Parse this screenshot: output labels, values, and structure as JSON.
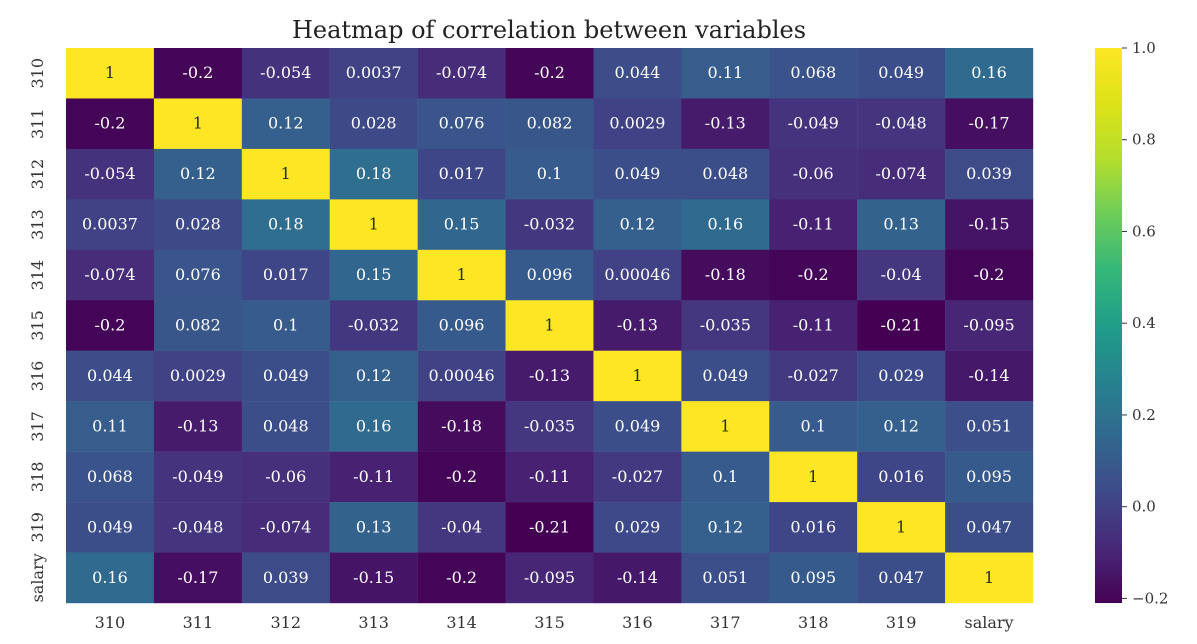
{
  "chart_data": {
    "type": "heatmap",
    "title": "Heatmap of correlation between variables",
    "rows": [
      "310",
      "311",
      "312",
      "313",
      "314",
      "315",
      "316",
      "317",
      "318",
      "319",
      "salary"
    ],
    "cols": [
      "310",
      "311",
      "312",
      "313",
      "314",
      "315",
      "316",
      "317",
      "318",
      "319",
      "salary"
    ],
    "values": [
      [
        1,
        -0.2,
        -0.054,
        0.0037,
        -0.074,
        -0.2,
        0.044,
        0.11,
        0.068,
        0.049,
        0.16
      ],
      [
        -0.2,
        1,
        0.12,
        0.028,
        0.076,
        0.082,
        0.0029,
        -0.13,
        -0.049,
        -0.048,
        -0.17
      ],
      [
        -0.054,
        0.12,
        1,
        0.18,
        0.017,
        0.1,
        0.049,
        0.048,
        -0.06,
        -0.074,
        0.039
      ],
      [
        0.0037,
        0.028,
        0.18,
        1,
        0.15,
        -0.032,
        0.12,
        0.16,
        -0.11,
        0.13,
        -0.15
      ],
      [
        -0.074,
        0.076,
        0.017,
        0.15,
        1,
        0.096,
        0.00046,
        -0.18,
        -0.2,
        -0.04,
        -0.2
      ],
      [
        -0.2,
        0.082,
        0.1,
        -0.032,
        0.096,
        1,
        -0.13,
        -0.035,
        -0.11,
        -0.21,
        -0.095
      ],
      [
        0.044,
        0.0029,
        0.049,
        0.12,
        0.00046,
        -0.13,
        1,
        0.049,
        -0.027,
        0.029,
        -0.14
      ],
      [
        0.11,
        -0.13,
        0.048,
        0.16,
        -0.18,
        -0.035,
        0.049,
        1,
        0.1,
        0.12,
        0.051
      ],
      [
        0.068,
        -0.049,
        -0.06,
        -0.11,
        -0.2,
        -0.11,
        -0.027,
        0.1,
        1,
        0.016,
        0.095
      ],
      [
        0.049,
        -0.048,
        -0.074,
        0.13,
        -0.04,
        -0.21,
        0.029,
        0.12,
        0.016,
        1,
        0.047
      ],
      [
        0.16,
        -0.17,
        0.039,
        -0.15,
        -0.2,
        -0.095,
        -0.14,
        0.051,
        0.095,
        0.047,
        1
      ]
    ],
    "value_labels": [
      [
        "1",
        "-0.2",
        "-0.054",
        "0.0037",
        "-0.074",
        "-0.2",
        "0.044",
        "0.11",
        "0.068",
        "0.049",
        "0.16"
      ],
      [
        "-0.2",
        "1",
        "0.12",
        "0.028",
        "0.076",
        "0.082",
        "0.0029",
        "-0.13",
        "-0.049",
        "-0.048",
        "-0.17"
      ],
      [
        "-0.054",
        "0.12",
        "1",
        "0.18",
        "0.017",
        "0.1",
        "0.049",
        "0.048",
        "-0.06",
        "-0.074",
        "0.039"
      ],
      [
        "0.0037",
        "0.028",
        "0.18",
        "1",
        "0.15",
        "-0.032",
        "0.12",
        "0.16",
        "-0.11",
        "0.13",
        "-0.15"
      ],
      [
        "-0.074",
        "0.076",
        "0.017",
        "0.15",
        "1",
        "0.096",
        "0.00046",
        "-0.18",
        "-0.2",
        "-0.04",
        "-0.2"
      ],
      [
        "-0.2",
        "0.082",
        "0.1",
        "-0.032",
        "0.096",
        "1",
        "-0.13",
        "-0.035",
        "-0.11",
        "-0.21",
        "-0.095"
      ],
      [
        "0.044",
        "0.0029",
        "0.049",
        "0.12",
        "0.00046",
        "-0.13",
        "1",
        "0.049",
        "-0.027",
        "0.029",
        "-0.14"
      ],
      [
        "0.11",
        "-0.13",
        "0.048",
        "0.16",
        "-0.18",
        "-0.035",
        "0.049",
        "1",
        "0.1",
        "0.12",
        "0.051"
      ],
      [
        "0.068",
        "-0.049",
        "-0.06",
        "-0.11",
        "-0.2",
        "-0.11",
        "-0.027",
        "0.1",
        "1",
        "0.016",
        "0.095"
      ],
      [
        "0.049",
        "-0.048",
        "-0.074",
        "0.13",
        "-0.04",
        "-0.21",
        "0.029",
        "0.12",
        "0.016",
        "1",
        "0.047"
      ],
      [
        "0.16",
        "-0.17",
        "0.039",
        "-0.15",
        "-0.2",
        "-0.095",
        "-0.14",
        "0.051",
        "0.095",
        "0.047",
        "1"
      ]
    ],
    "colormap": "viridis",
    "vmin": -0.21,
    "vmax": 1.0,
    "colorbar": {
      "ticks": [
        1.0,
        0.8,
        0.6,
        0.4,
        0.2,
        0.0,
        -0.2
      ],
      "tick_labels": [
        "1.0",
        "0.8",
        "0.6",
        "0.4",
        "0.2",
        "0.0",
        "−0.2"
      ]
    },
    "grid": false,
    "legend": "right colorbar"
  }
}
